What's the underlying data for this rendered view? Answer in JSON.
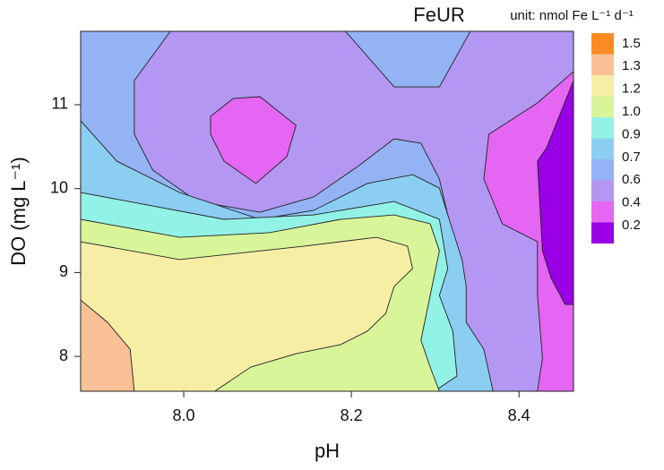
{
  "chart_data": {
    "type": "contour",
    "title": "FeUR",
    "subtitle": "unit: nmol Fe L⁻¹ d⁻¹",
    "x_label": "pH",
    "y_label": "DO (mg L⁻¹)",
    "xlim": [
      7.877,
      8.465
    ],
    "ylim": [
      7.585,
      11.875
    ],
    "xticks": [
      {
        "value": 8,
        "label": "8.0"
      },
      8.2,
      8.4
    ],
    "yticks": [
      8,
      9,
      10,
      11
    ],
    "levels": [
      0.2,
      0.4,
      0.6,
      0.7,
      0.9,
      {
        "value": 1,
        "label": "1.0"
      },
      1.2,
      1.3,
      1.5
    ],
    "colors": [
      "#9a00e6",
      "#e466f2",
      "#b497f2",
      "#93b3f5",
      "#8ccdf2",
      "#93f2e6",
      "#d9f59a",
      "#f7eea6",
      "#f9c195",
      "#fa8a22"
    ],
    "regions": [
      {
        "color": "#93b3f5",
        "x": [
          7.877,
          8.465,
          8.465,
          7.877
        ],
        "y": [
          11.875,
          11.875,
          7.585,
          7.585
        ]
      },
      {
        "color": "#b497f2",
        "x": [
          7.984,
          8.193,
          8.251,
          8.305,
          8.342,
          8.465,
          8.465,
          8.337,
          8.332,
          8.315,
          8.305,
          8.283,
          8.251,
          8.209,
          8.155,
          8.091,
          8.016,
          7.963,
          7.941,
          7.941
        ],
        "y": [
          11.875,
          11.875,
          11.213,
          11.213,
          11.875,
          11.875,
          7.585,
          7.585,
          9.047,
          9.687,
          10.114,
          10.541,
          10.594,
          10.274,
          9.901,
          9.719,
          9.847,
          10.221,
          10.648,
          11.288
        ]
      },
      {
        "color": "#e466f2",
        "x": [
          8.465,
          8.422,
          8.364,
          8.358,
          8.38,
          8.422,
          8.422,
          8.428,
          8.422,
          8.465
        ],
        "y": [
          11.395,
          11.021,
          10.648,
          10.114,
          9.581,
          9.367,
          8.727,
          7.98,
          7.585,
          7.585
        ]
      },
      {
        "color": "#e466f2",
        "x": [
          8.032,
          8.059,
          8.091,
          8.134,
          8.123,
          8.086,
          8.048,
          8.032
        ],
        "y": [
          10.861,
          11.075,
          11.096,
          10.754,
          10.381,
          10.061,
          10.328,
          10.648
        ]
      },
      {
        "color": "#9a00e6",
        "x": [
          8.465,
          8.433,
          8.422,
          8.428,
          8.438,
          8.455,
          8.465
        ],
        "y": [
          11.288,
          10.488,
          10.328,
          9.26,
          8.94,
          8.62,
          8.62
        ]
      },
      {
        "color": "#8ccdf2",
        "x": [
          7.877,
          7.92,
          7.995,
          8.091,
          8.155,
          8.219,
          8.273,
          8.305,
          8.315,
          8.332,
          8.337,
          8.337,
          8.358,
          8.369,
          7.877
        ],
        "y": [
          10.808,
          10.328,
          9.954,
          9.634,
          9.741,
          10.061,
          10.167,
          10.007,
          9.687,
          9.154,
          8.834,
          8.407,
          8.086,
          7.585,
          7.585
        ]
      },
      {
        "color": "#93f2e6",
        "x": [
          7.877,
          8.048,
          8.155,
          8.251,
          8.305,
          8.315,
          8.305,
          8.321,
          8.326,
          8.299,
          7.877
        ],
        "y": [
          9.954,
          9.634,
          9.687,
          9.847,
          9.634,
          9.047,
          8.727,
          8.3,
          7.766,
          7.585,
          7.585
        ]
      },
      {
        "color": "#d9f59a",
        "x": [
          7.877,
          7.995,
          8.102,
          8.187,
          8.251,
          8.294,
          8.305,
          8.294,
          8.283,
          8.294,
          8.305,
          7.877
        ],
        "y": [
          9.634,
          9.42,
          9.474,
          9.634,
          9.687,
          9.581,
          9.26,
          8.727,
          8.193,
          7.873,
          7.585,
          7.585
        ]
      },
      {
        "color": "#f7eea6",
        "x": [
          7.877,
          7.995,
          8.144,
          8.23,
          8.267,
          8.273,
          8.251,
          8.241,
          8.219,
          8.187,
          8.134,
          8.08,
          8.037,
          7.877
        ],
        "y": [
          9.367,
          9.154,
          9.314,
          9.42,
          9.314,
          9.047,
          8.834,
          8.513,
          8.3,
          8.14,
          8.033,
          7.873,
          7.585,
          7.585
        ]
      },
      {
        "color": "#f9c195",
        "x": [
          7.877,
          7.909,
          7.936,
          7.941,
          7.877
        ],
        "y": [
          8.673,
          8.407,
          8.086,
          7.585,
          7.585
        ]
      }
    ]
  }
}
